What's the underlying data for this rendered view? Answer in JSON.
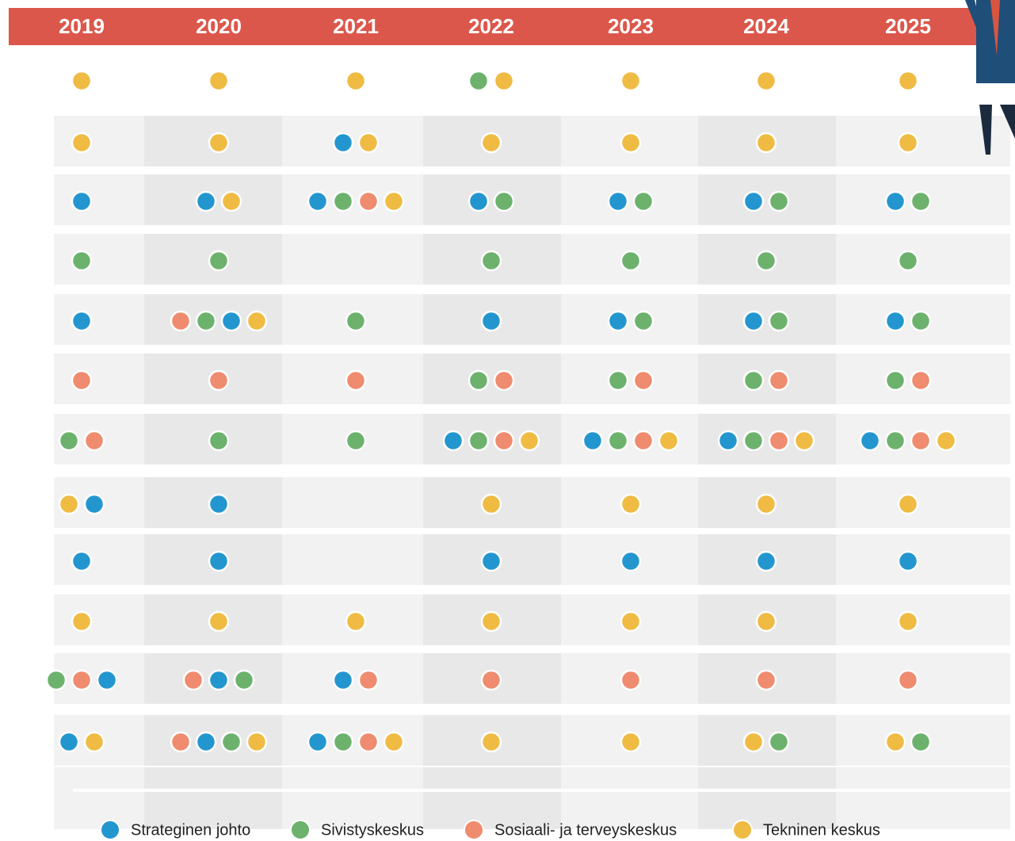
{
  "years": [
    "2019",
    "2020",
    "2021",
    "2022",
    "2023",
    "2024",
    "2025"
  ],
  "legend": [
    {
      "label": "Strateginen johto",
      "color": "#2496cf"
    },
    {
      "label": "Sivistyskeskus",
      "color": "#6cb26d"
    },
    {
      "label": "Sosiaali- ja terveyskeskus",
      "color": "#ef8b6e"
    },
    {
      "label": "Tekninen keskus",
      "color": "#efbb43"
    }
  ],
  "rows": [
    [
      [
        3
      ],
      [
        3
      ],
      [
        3
      ],
      [
        1,
        3
      ],
      [
        3
      ],
      [
        3
      ],
      [
        3
      ]
    ],
    [
      [
        3
      ],
      [
        3
      ],
      [
        0,
        3
      ],
      [
        3
      ],
      [
        3
      ],
      [
        3
      ],
      [
        3
      ]
    ],
    [
      [
        0
      ],
      [
        0,
        3
      ],
      [
        0,
        1,
        2,
        3
      ],
      [
        0,
        1
      ],
      [
        0,
        1
      ],
      [
        0,
        1
      ],
      [
        0,
        1
      ]
    ],
    [
      [
        1
      ],
      [
        1
      ],
      [],
      [
        1
      ],
      [
        1
      ],
      [
        1
      ],
      [
        1
      ]
    ],
    [
      [
        0
      ],
      [
        2,
        1,
        0,
        3
      ],
      [
        1
      ],
      [
        0
      ],
      [
        0,
        1
      ],
      [
        0,
        1
      ],
      [
        0,
        1
      ]
    ],
    [
      [
        2
      ],
      [
        2
      ],
      [
        2
      ],
      [
        1,
        2
      ],
      [
        1,
        2
      ],
      [
        1,
        2
      ],
      [
        1,
        2
      ]
    ],
    [
      [
        1,
        2
      ],
      [
        1
      ],
      [
        1
      ],
      [
        0,
        1,
        2,
        3
      ],
      [
        0,
        1,
        2,
        3
      ],
      [
        0,
        1,
        2,
        3
      ],
      [
        0,
        1,
        2,
        3
      ]
    ],
    [
      [
        3,
        0
      ],
      [
        0
      ],
      [],
      [
        3
      ],
      [
        3
      ],
      [
        3
      ],
      [
        3
      ]
    ],
    [
      [
        0
      ],
      [
        0
      ],
      [],
      [
        0
      ],
      [
        0
      ],
      [
        0
      ],
      [
        0
      ]
    ],
    [
      [
        3
      ],
      [
        3
      ],
      [
        3
      ],
      [
        3
      ],
      [
        3
      ],
      [
        3
      ],
      [
        3
      ]
    ],
    [
      [
        1,
        2,
        0
      ],
      [
        2,
        0,
        1
      ],
      [
        0,
        2
      ],
      [
        2
      ],
      [
        2
      ],
      [
        2
      ],
      [
        2
      ]
    ],
    [
      [
        0,
        3
      ],
      [
        2,
        0,
        1,
        3
      ],
      [
        0,
        1,
        2,
        3
      ],
      [
        3
      ],
      [
        3
      ],
      [
        3,
        1
      ],
      [
        3,
        1
      ]
    ]
  ]
}
